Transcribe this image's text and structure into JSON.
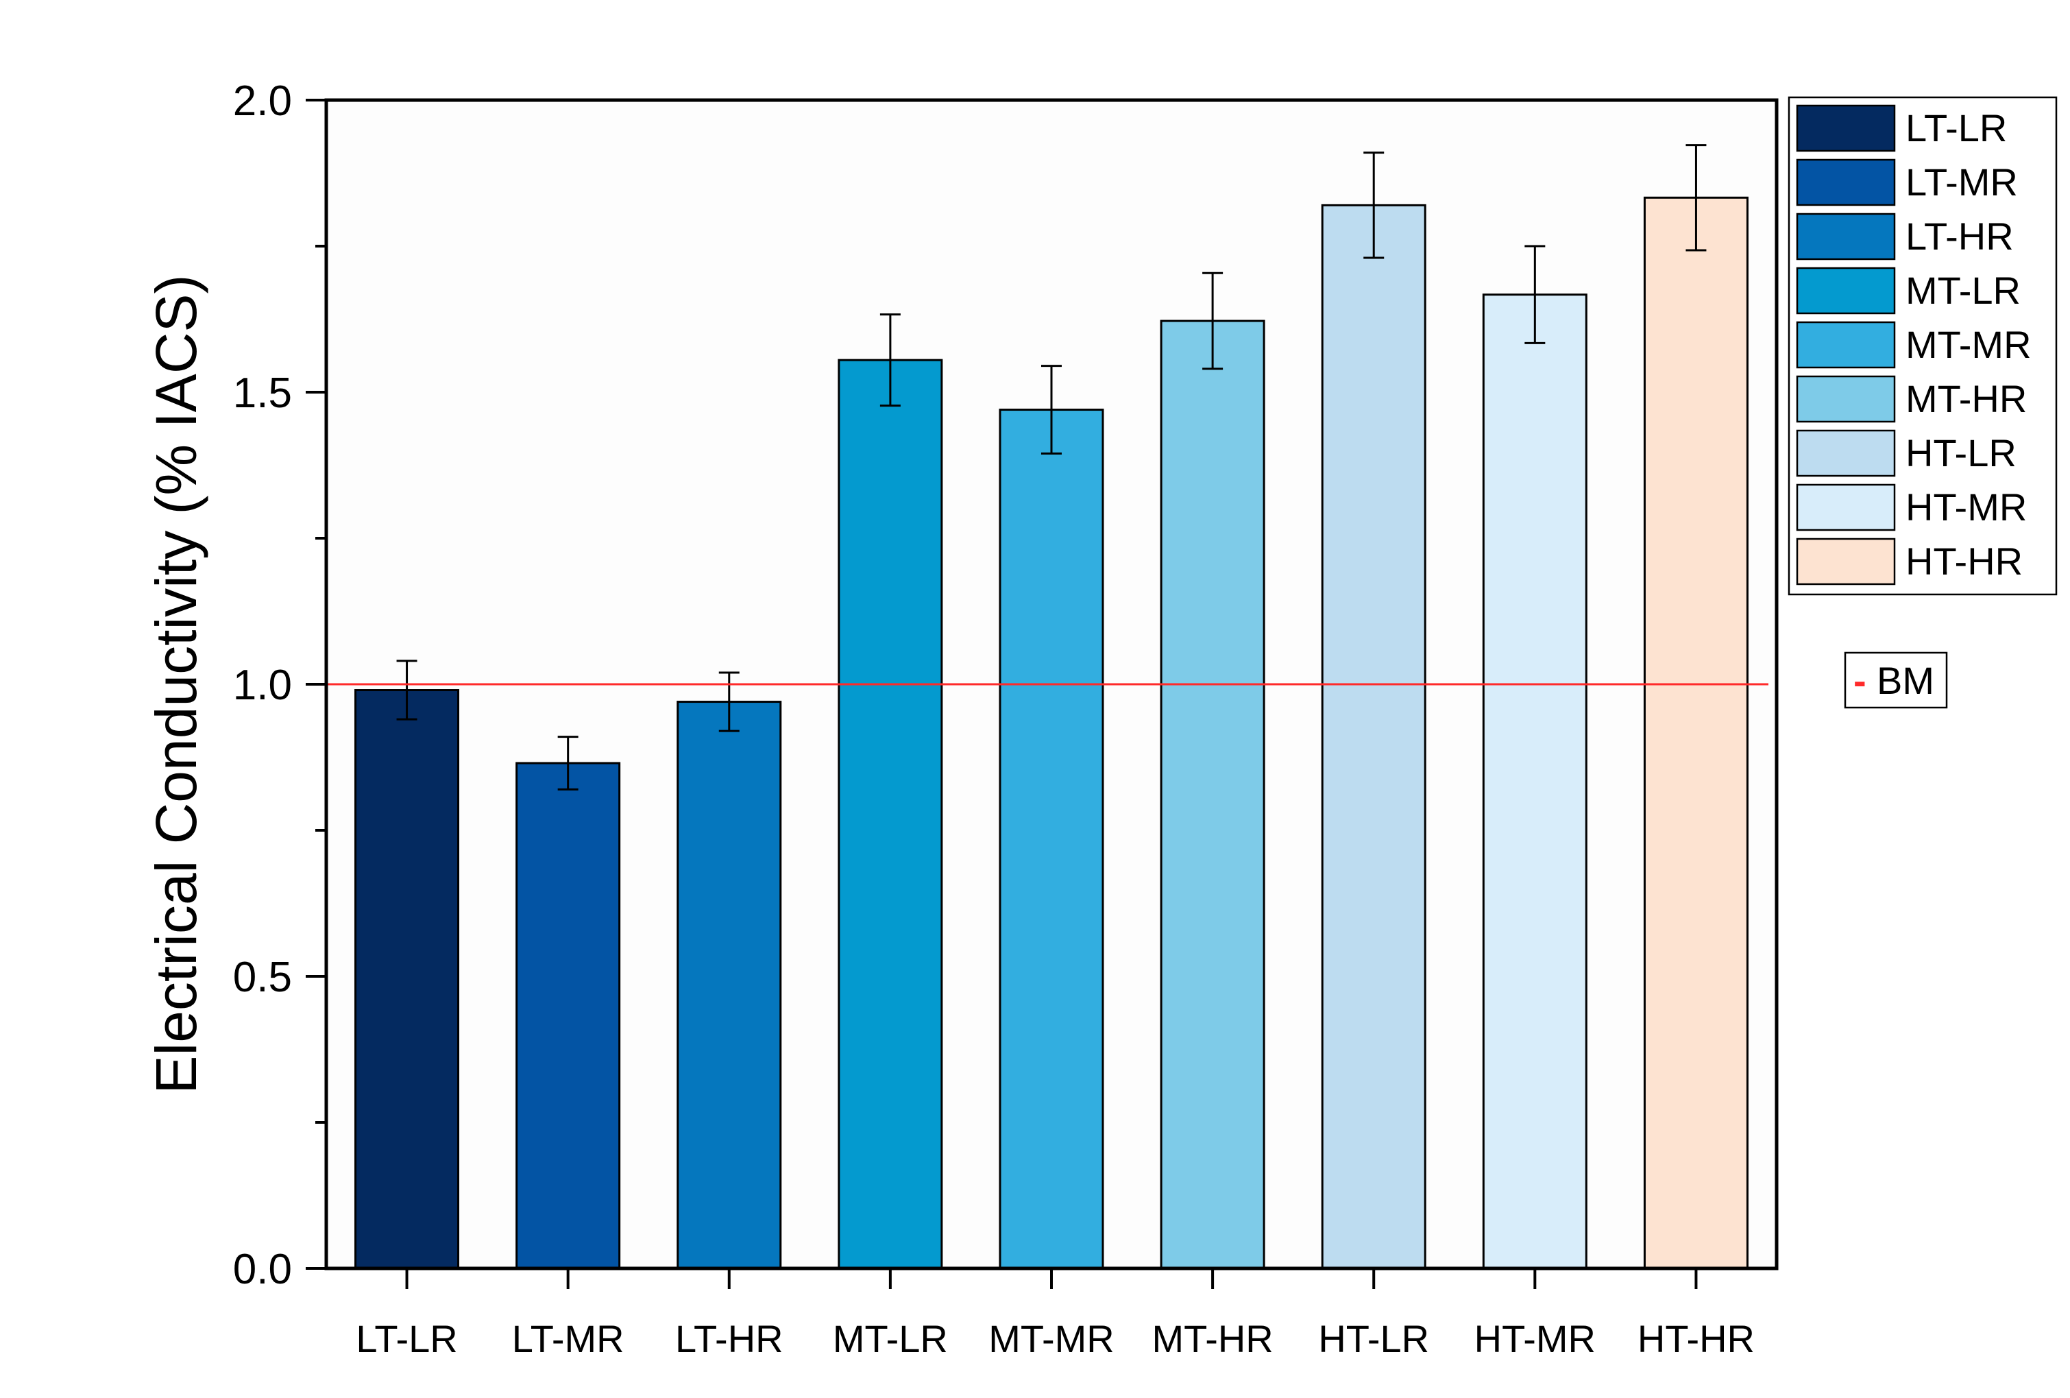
{
  "chart_data": {
    "type": "bar",
    "title": "",
    "xlabel": "",
    "ylabel": "Electrical Conductivity (% IACS)",
    "ylim": [
      0,
      2.0
    ],
    "yticks": [
      "0.0",
      "0.5",
      "1.0",
      "1.5",
      "2.0"
    ],
    "categories": [
      "LT-LR",
      "LT-MR",
      "LT-HR",
      "MT-LR",
      "MT-MR",
      "MT-HR",
      "HT-LR",
      "HT-MR",
      "HT-HR"
    ],
    "values": [
      0.99,
      0.865,
      0.97,
      1.555,
      1.47,
      1.622,
      1.82,
      1.667,
      1.833
    ],
    "errors": [
      0.05,
      0.045,
      0.05,
      0.078,
      0.075,
      0.082,
      0.09,
      0.083,
      0.09
    ],
    "colors": [
      "#042a60",
      "#0354a4",
      "#0577be",
      "#049acf",
      "#32aee0",
      "#7ecbe8",
      "#bddcf0",
      "#d8edfa",
      "#fde3d1"
    ],
    "legend": {
      "placement": "top-right, outside plot",
      "entries": [
        "LT-LR",
        "LT-MR",
        "LT-HR",
        "MT-LR",
        "MT-MR",
        "MT-HR",
        "HT-LR",
        "HT-MR",
        "HT-HR"
      ]
    },
    "reference_line": {
      "label": "BM",
      "value": 1.0,
      "color": "#ff2a2a",
      "marker": "-"
    },
    "grid": false
  }
}
